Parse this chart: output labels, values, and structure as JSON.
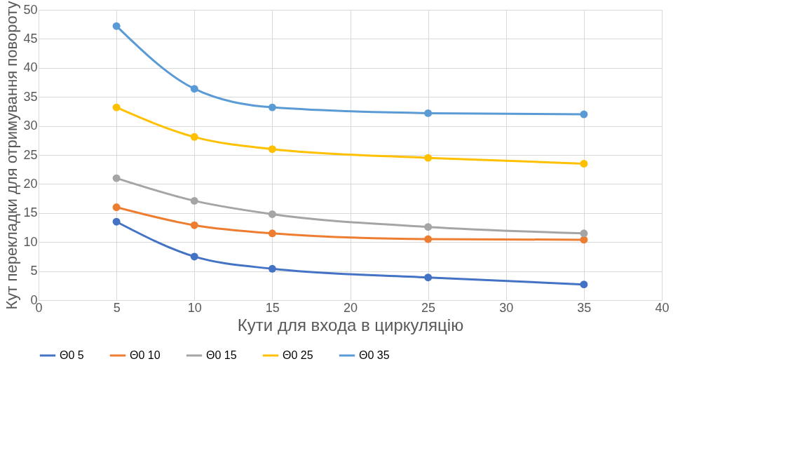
{
  "chart_data": {
    "type": "line",
    "xlabel": "Кути для входа в циркуляцію",
    "ylabel": "Кут перекладки для отримування повороту",
    "x": [
      5,
      10,
      15,
      25,
      35
    ],
    "series": [
      {
        "name": "Θ0 5",
        "color": "#4472c4",
        "values": [
          13.5,
          7.5,
          5.4,
          3.9,
          2.7
        ]
      },
      {
        "name": "Θ0 10",
        "color": "#ed7d31",
        "values": [
          16.0,
          12.9,
          11.5,
          10.5,
          10.4
        ]
      },
      {
        "name": "Θ0 15",
        "color": "#a5a5a5",
        "values": [
          21.0,
          17.1,
          14.8,
          12.6,
          11.5
        ]
      },
      {
        "name": "Θ0 25",
        "color": "#ffc000",
        "values": [
          33.2,
          28.1,
          26.0,
          24.5,
          23.5
        ]
      },
      {
        "name": "Θ0 35",
        "color": "#5b9bd5",
        "values": [
          47.2,
          36.4,
          33.2,
          32.2,
          32.0
        ]
      }
    ],
    "xlim": [
      0,
      40
    ],
    "xticks": [
      0,
      5,
      10,
      15,
      20,
      25,
      30,
      35,
      40
    ],
    "ylim": [
      0,
      50
    ],
    "yticks": [
      0,
      5,
      10,
      15,
      20,
      25,
      30,
      35,
      40,
      45,
      50
    ],
    "grid": true,
    "legend": "bottom",
    "marker": "circle",
    "line_style": "solid"
  }
}
